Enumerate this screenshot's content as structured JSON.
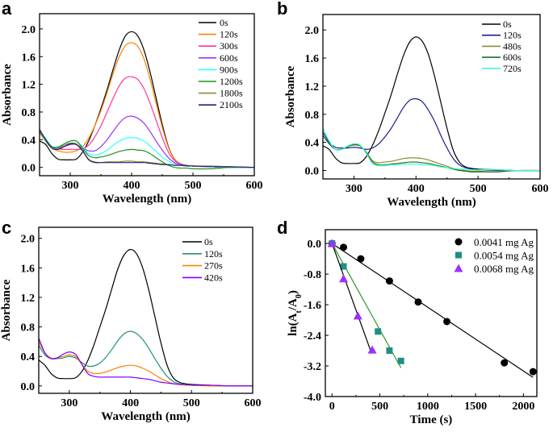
{
  "chart_data": [
    {
      "panel_label": "a",
      "type": "line",
      "xlabel": "Wavelength (nm)",
      "ylabel": "Absorbance",
      "xlim": [
        250,
        600
      ],
      "ylim": [
        -0.12,
        2.22
      ],
      "xticks": [
        300,
        400,
        500,
        600
      ],
      "yticks": [
        0.0,
        0.4,
        0.8,
        1.2,
        1.6,
        2.0
      ],
      "legend_position": "top-right",
      "grid": false,
      "x": [
        250,
        260,
        270,
        280,
        290,
        300,
        310,
        320,
        330,
        340,
        350,
        360,
        370,
        380,
        390,
        400,
        410,
        420,
        430,
        440,
        450,
        460,
        470,
        480,
        490,
        500,
        530,
        560,
        600
      ],
      "series": [
        {
          "name": "0s",
          "color": "#000000",
          "values": [
            0.38,
            0.33,
            0.2,
            0.12,
            0.11,
            0.11,
            0.12,
            0.22,
            0.38,
            0.6,
            0.85,
            1.12,
            1.42,
            1.7,
            1.9,
            1.96,
            1.9,
            1.7,
            1.38,
            1.0,
            0.62,
            0.3,
            0.12,
            0.05,
            0.03,
            0.02,
            0.01,
            0,
            0
          ]
        },
        {
          "name": "120s",
          "color": "#ff8000",
          "values": [
            0.5,
            0.38,
            0.28,
            0.24,
            0.22,
            0.22,
            0.24,
            0.3,
            0.42,
            0.6,
            0.82,
            1.08,
            1.36,
            1.6,
            1.76,
            1.8,
            1.75,
            1.57,
            1.28,
            0.93,
            0.58,
            0.29,
            0.12,
            0.05,
            0.03,
            0.02,
            0.01,
            0,
            0
          ]
        },
        {
          "name": "300s",
          "color": "#ff3399",
          "values": [
            0.52,
            0.4,
            0.3,
            0.27,
            0.26,
            0.26,
            0.26,
            0.27,
            0.32,
            0.44,
            0.6,
            0.8,
            1.0,
            1.18,
            1.29,
            1.31,
            1.27,
            1.14,
            0.93,
            0.68,
            0.43,
            0.22,
            0.1,
            0.05,
            0.03,
            0.02,
            0.01,
            0,
            0
          ]
        },
        {
          "name": "600s",
          "color": "#9933ff",
          "values": [
            0.52,
            0.4,
            0.3,
            0.28,
            0.3,
            0.33,
            0.33,
            0.28,
            0.24,
            0.24,
            0.3,
            0.4,
            0.52,
            0.64,
            0.72,
            0.74,
            0.71,
            0.64,
            0.52,
            0.38,
            0.25,
            0.14,
            0.07,
            0.04,
            0.03,
            0.02,
            0.01,
            0,
            0
          ]
        },
        {
          "name": "900s",
          "color": "#33ffff",
          "values": [
            0.54,
            0.42,
            0.3,
            0.3,
            0.34,
            0.38,
            0.38,
            0.3,
            0.2,
            0.18,
            0.2,
            0.25,
            0.32,
            0.38,
            0.42,
            0.43,
            0.42,
            0.38,
            0.31,
            0.23,
            0.15,
            0.09,
            0.05,
            0.03,
            0.02,
            0.02,
            0.01,
            0,
            0
          ]
        },
        {
          "name": "1200s",
          "color": "#209020",
          "values": [
            0.54,
            0.4,
            0.3,
            0.29,
            0.34,
            0.38,
            0.38,
            0.28,
            0.17,
            0.14,
            0.15,
            0.17,
            0.2,
            0.23,
            0.25,
            0.26,
            0.25,
            0.24,
            0.2,
            0.14,
            0.08,
            0.03,
            0.0,
            -0.01,
            -0.01,
            -0.02,
            -0.02,
            0,
            0
          ]
        },
        {
          "name": "1800s",
          "color": "#8b8b30",
          "values": [
            0.52,
            0.38,
            0.28,
            0.28,
            0.32,
            0.35,
            0.34,
            0.25,
            0.12,
            0.08,
            0.07,
            0.08,
            0.08,
            0.08,
            0.09,
            0.09,
            0.08,
            0.08,
            0.07,
            0.06,
            0.05,
            0.04,
            0.03,
            0.03,
            0.03,
            0.02,
            0.02,
            0.01,
            0
          ]
        },
        {
          "name": "2100s",
          "color": "#202080",
          "values": [
            0.55,
            0.4,
            0.28,
            0.26,
            0.3,
            0.34,
            0.33,
            0.24,
            0.11,
            0.07,
            0.07,
            0.07,
            0.07,
            0.07,
            0.07,
            0.07,
            0.07,
            0.07,
            0.06,
            0.05,
            0.04,
            0.04,
            0.03,
            0.03,
            0.02,
            0.02,
            0.01,
            0.01,
            0
          ]
        }
      ]
    },
    {
      "panel_label": "b",
      "type": "line",
      "xlabel": "Wavelength (nm)",
      "ylabel": "Absorbance",
      "xlim": [
        250,
        600
      ],
      "ylim": [
        -0.12,
        2.22
      ],
      "xticks": [
        300,
        400,
        500,
        600
      ],
      "yticks": [
        0.0,
        0.4,
        0.8,
        1.2,
        1.6,
        2.0
      ],
      "legend_position": "top-right",
      "grid": false,
      "x": [
        250,
        260,
        270,
        280,
        290,
        300,
        310,
        320,
        330,
        340,
        350,
        360,
        370,
        380,
        390,
        400,
        410,
        420,
        430,
        440,
        450,
        460,
        470,
        480,
        490,
        500,
        530,
        560,
        600
      ],
      "series": [
        {
          "name": "0s",
          "color": "#000000",
          "values": [
            0.35,
            0.3,
            0.18,
            0.11,
            0.1,
            0.1,
            0.11,
            0.2,
            0.36,
            0.57,
            0.82,
            1.08,
            1.37,
            1.64,
            1.83,
            1.9,
            1.84,
            1.65,
            1.34,
            0.97,
            0.6,
            0.29,
            0.12,
            0.05,
            0.03,
            0.02,
            0.01,
            0,
            0
          ]
        },
        {
          "name": "120s",
          "color": "#1a1a8c",
          "values": [
            0.55,
            0.4,
            0.33,
            0.32,
            0.32,
            0.33,
            0.32,
            0.3,
            0.32,
            0.38,
            0.48,
            0.6,
            0.75,
            0.9,
            1.0,
            1.02,
            0.98,
            0.86,
            0.7,
            0.5,
            0.32,
            0.17,
            0.08,
            0.04,
            0.02,
            0.01,
            0,
            0,
            0
          ]
        },
        {
          "name": "480s",
          "color": "#8b8b30",
          "values": [
            0.5,
            0.38,
            0.3,
            0.3,
            0.34,
            0.36,
            0.35,
            0.26,
            0.14,
            0.11,
            0.12,
            0.13,
            0.15,
            0.17,
            0.18,
            0.18,
            0.17,
            0.15,
            0.12,
            0.09,
            0.06,
            0.03,
            0.01,
            0,
            -0.01,
            -0.01,
            -0.02,
            0,
            0
          ]
        },
        {
          "name": "600s",
          "color": "#207020",
          "values": [
            0.5,
            0.38,
            0.3,
            0.3,
            0.34,
            0.37,
            0.35,
            0.25,
            0.12,
            0.08,
            0.08,
            0.09,
            0.1,
            0.11,
            0.12,
            0.12,
            0.11,
            0.1,
            0.08,
            0.06,
            0.04,
            0.02,
            0,
            -0.01,
            -0.02,
            -0.02,
            -0.02,
            0,
            0
          ]
        },
        {
          "name": "720s",
          "color": "#33ffdd",
          "values": [
            0.6,
            0.42,
            0.3,
            0.3,
            0.35,
            0.38,
            0.36,
            0.24,
            0.1,
            0.07,
            0.07,
            0.08,
            0.08,
            0.09,
            0.09,
            0.09,
            0.08,
            0.08,
            0.07,
            0.05,
            0.04,
            0.03,
            0.02,
            0.02,
            0.01,
            0.01,
            0.01,
            0,
            0
          ]
        }
      ]
    },
    {
      "panel_label": "c",
      "type": "line",
      "xlabel": "Wavelength (nm)",
      "ylabel": "Absorbance",
      "xlim": [
        250,
        600
      ],
      "ylim": [
        -0.1,
        2.15
      ],
      "xticks": [
        300,
        400,
        500,
        600
      ],
      "yticks": [
        0.0,
        0.4,
        0.8,
        1.2,
        1.6,
        2.0
      ],
      "legend_position": "top-right",
      "grid": false,
      "x": [
        250,
        260,
        270,
        280,
        290,
        300,
        310,
        320,
        330,
        340,
        350,
        360,
        370,
        380,
        390,
        400,
        410,
        420,
        430,
        440,
        450,
        460,
        470,
        480,
        490,
        500,
        530,
        560,
        600
      ],
      "series": [
        {
          "name": "0s",
          "color": "#000000",
          "values": [
            0.35,
            0.28,
            0.17,
            0.11,
            0.1,
            0.1,
            0.11,
            0.19,
            0.34,
            0.55,
            0.8,
            1.05,
            1.33,
            1.6,
            1.78,
            1.85,
            1.79,
            1.6,
            1.3,
            0.94,
            0.58,
            0.28,
            0.11,
            0.05,
            0.03,
            0.02,
            0.01,
            0,
            0
          ]
        },
        {
          "name": "120s",
          "color": "#209080",
          "values": [
            0.55,
            0.42,
            0.37,
            0.37,
            0.38,
            0.4,
            0.38,
            0.32,
            0.27,
            0.27,
            0.31,
            0.39,
            0.5,
            0.62,
            0.71,
            0.74,
            0.71,
            0.63,
            0.51,
            0.37,
            0.24,
            0.13,
            0.06,
            0.03,
            0.02,
            0.01,
            0.01,
            0,
            0
          ]
        },
        {
          "name": "270s",
          "color": "#ff8000",
          "values": [
            0.6,
            0.45,
            0.38,
            0.38,
            0.4,
            0.42,
            0.4,
            0.3,
            0.2,
            0.17,
            0.17,
            0.19,
            0.22,
            0.25,
            0.27,
            0.28,
            0.27,
            0.24,
            0.2,
            0.15,
            0.1,
            0.06,
            0.03,
            0.02,
            0.01,
            0.01,
            0,
            0,
            0
          ]
        },
        {
          "name": "420s",
          "color": "#8000ff",
          "values": [
            0.65,
            0.45,
            0.37,
            0.38,
            0.43,
            0.46,
            0.43,
            0.3,
            0.17,
            0.13,
            0.12,
            0.12,
            0.12,
            0.12,
            0.12,
            0.12,
            0.11,
            0.1,
            0.09,
            0.07,
            0.05,
            0.04,
            0.03,
            0.02,
            0.02,
            0.01,
            0.01,
            0,
            0
          ]
        }
      ]
    },
    {
      "panel_label": "d",
      "type": "scatter",
      "xlabel": "Time (s)",
      "ylabel": "ln(At/A0)",
      "ylabel_parts": [
        "ln(A",
        "t",
        "/A",
        "0",
        ")"
      ],
      "xlim": [
        -70,
        2140
      ],
      "ylim": [
        -4.0,
        0.36
      ],
      "xticks": [
        0,
        500,
        1000,
        1500,
        2000
      ],
      "yticks": [
        0.0,
        -0.8,
        -1.6,
        -2.4,
        -3.2,
        -4.0
      ],
      "legend_position": "top-right",
      "grid": false,
      "series": [
        {
          "name": "0.0041 mg Ag",
          "color": "#000000",
          "marker": "circle",
          "line_color": "#000000",
          "x": [
            0,
            120,
            300,
            600,
            900,
            1200,
            1800,
            2100
          ],
          "y": [
            0,
            -0.1,
            -0.4,
            -0.98,
            -1.53,
            -2.04,
            -3.12,
            -3.35
          ],
          "fit": {
            "x": [
              0,
              2100
            ],
            "y": [
              0,
              -3.5
            ]
          }
        },
        {
          "name": "0.0054 mg Ag",
          "color": "#1f8f86",
          "marker": "square",
          "line_color": "#2a9a2a",
          "x": [
            0,
            120,
            480,
            600,
            720
          ],
          "y": [
            0,
            -0.6,
            -2.3,
            -2.8,
            -3.07
          ],
          "fit": {
            "x": [
              0,
              720
            ],
            "y": [
              0,
              -3.25
            ]
          }
        },
        {
          "name": "0.0068 mg Ag",
          "color": "#9b30ff",
          "marker": "triangle",
          "line_color": "#000000",
          "x": [
            0,
            120,
            270,
            420
          ],
          "y": [
            0,
            -0.92,
            -1.89,
            -2.78
          ],
          "fit": {
            "x": [
              0,
              410
            ],
            "y": [
              0,
              -2.85
            ]
          }
        }
      ]
    }
  ]
}
